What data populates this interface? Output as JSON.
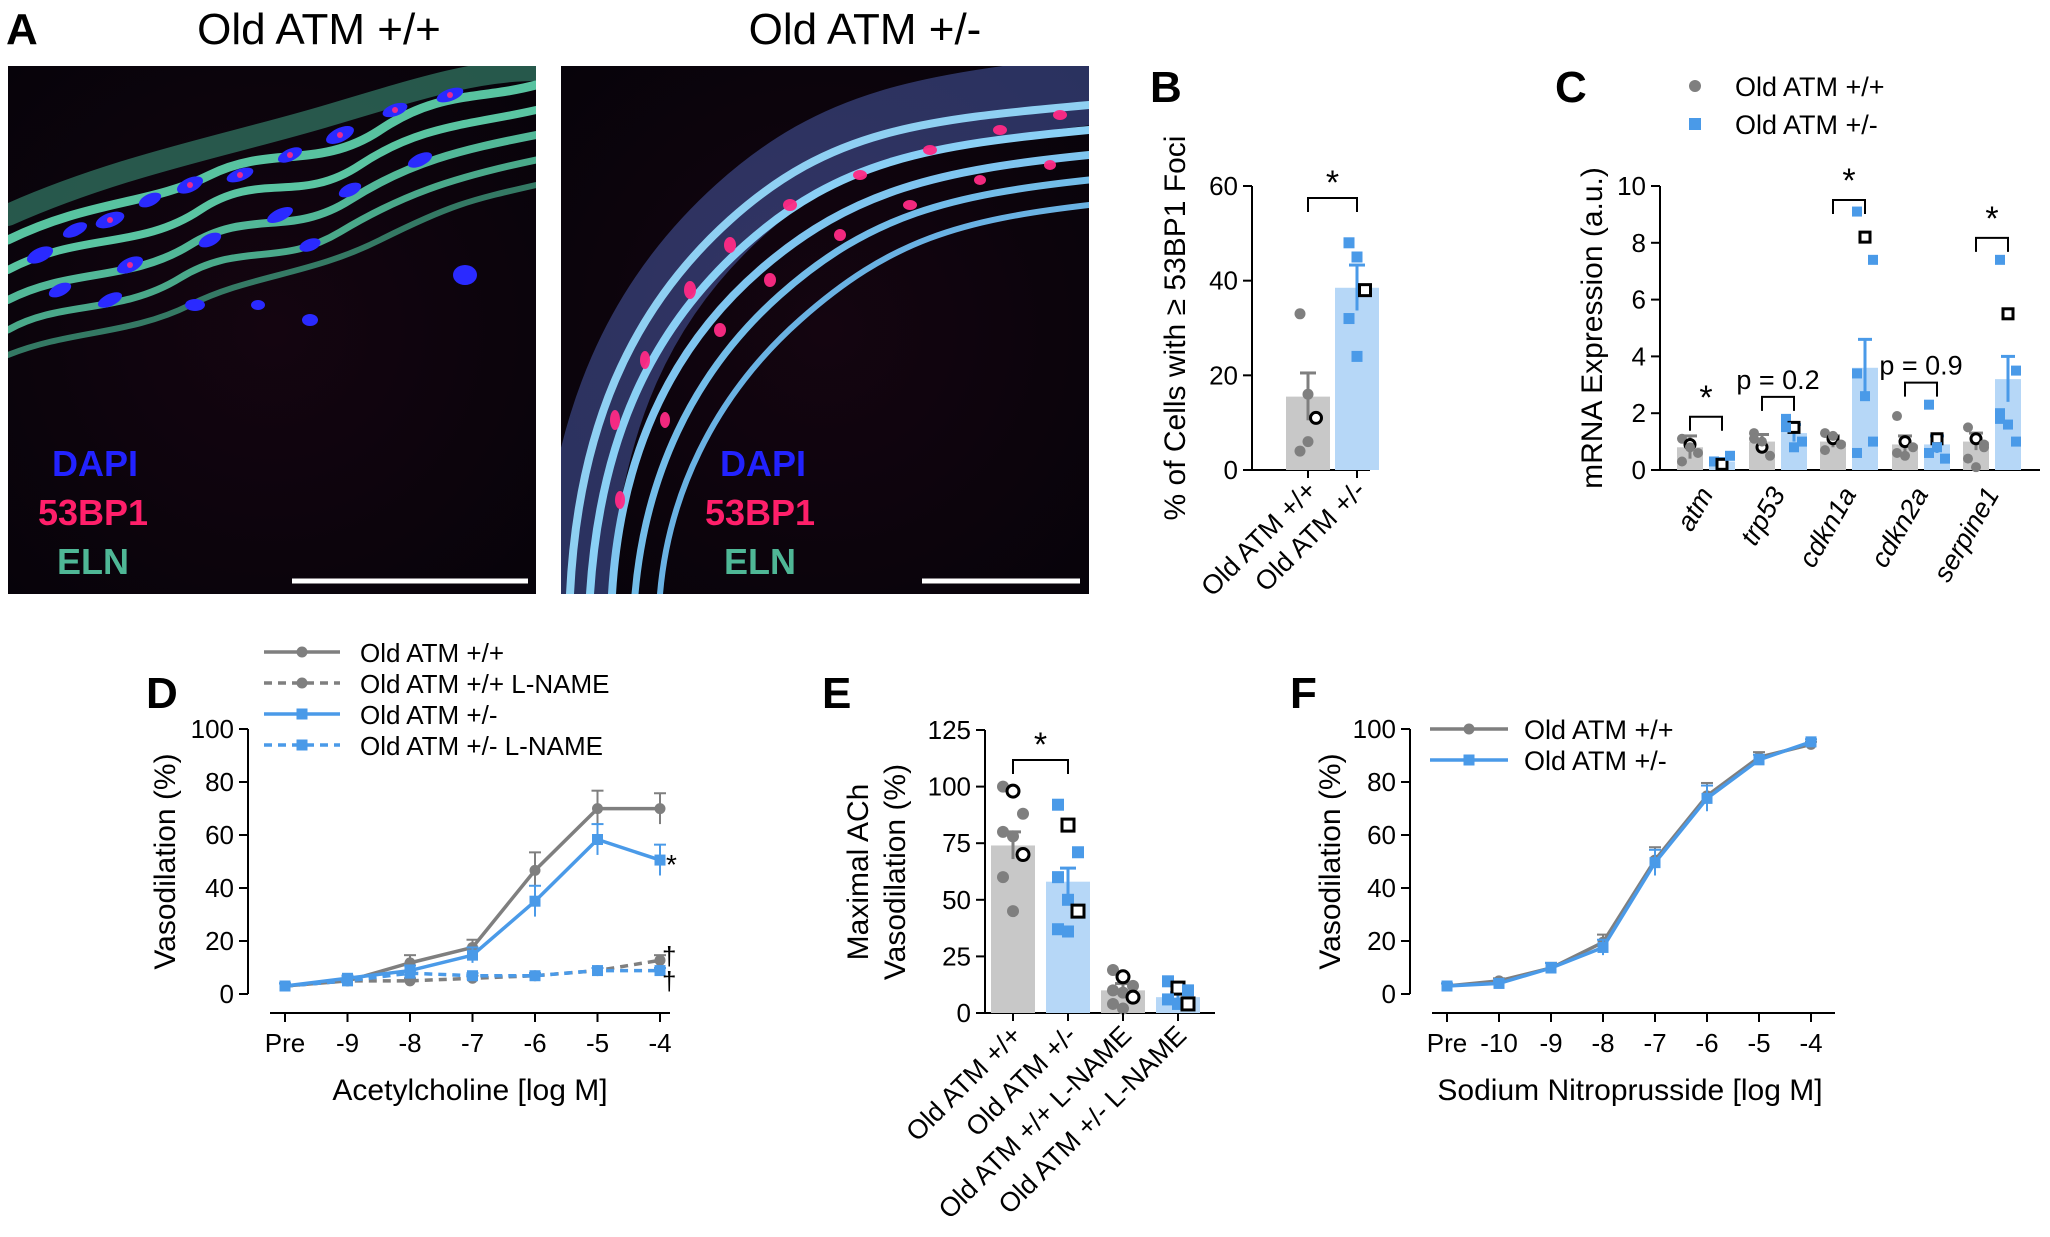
{
  "colors": {
    "wt": "#7f7f7f",
    "het": "#4a9ae8",
    "wt_fill": "#c8c8c8",
    "het_fill": "#b6d7f7",
    "dapi": "#2020ff",
    "bp1": "#ff1f6a",
    "eln": "#4fb796"
  },
  "panels": {
    "A": {
      "letter": "A",
      "titles": [
        "Old ATM +/+",
        "Old ATM +/-"
      ],
      "stains": [
        "DAPI",
        "53BP1",
        "ELN"
      ]
    },
    "B": {
      "letter": "B"
    },
    "C": {
      "letter": "C"
    },
    "D": {
      "letter": "D"
    },
    "E": {
      "letter": "E"
    },
    "F": {
      "letter": "F"
    }
  },
  "chart_data": [
    {
      "id": "B",
      "type": "bar",
      "ylabel": "% of Cells with ≥ 53BP1 Foci",
      "ylim": [
        0,
        60
      ],
      "yticks": [
        "0",
        "20",
        "40",
        "60"
      ],
      "categories": [
        "Old ATM +/+",
        "Old ATM +/-"
      ],
      "values": [
        15.5,
        38.5
      ],
      "sem": [
        5,
        4.8
      ],
      "points": [
        [
          33,
          16,
          11,
          4,
          6
        ],
        [
          48,
          45,
          38,
          32,
          24
        ]
      ],
      "significance": "*"
    },
    {
      "id": "C",
      "type": "bar",
      "ylabel": "mRNA Expression (a.u.)",
      "ylim": [
        0,
        10
      ],
      "yticks": [
        "0",
        "2",
        "4",
        "6",
        "8",
        "10"
      ],
      "categories": [
        "atm",
        "trp53",
        "cdkn1a",
        "cdkn2a",
        "serpine1"
      ],
      "series": [
        {
          "name": "Old ATM +/+",
          "values": [
            0.8,
            1.0,
            1.0,
            0.9,
            1.0
          ],
          "sem": [
            0.4,
            0.25,
            0.2,
            0.3,
            0.3
          ],
          "points": [
            [
              1.1,
              0.9,
              0.6,
              0.3,
              0.8
            ],
            [
              1.3,
              0.8,
              0.5,
              1.1,
              1.0
            ],
            [
              1.3,
              1.1,
              0.9,
              0.7,
              1.2
            ],
            [
              1.9,
              1.0,
              0.8,
              0.6,
              0.5
            ],
            [
              1.5,
              1.1,
              0.9,
              0.4,
              0.1,
              0.8
            ]
          ]
        },
        {
          "name": "Old ATM +/-",
          "values": [
            0.3,
            1.3,
            3.6,
            0.9,
            3.2
          ],
          "sem": [
            0.1,
            0.3,
            1.0,
            0.3,
            0.8
          ],
          "points": [
            [
              0.3,
              0.2,
              0.5
            ],
            [
              1.8,
              1.5,
              1.0,
              1.5,
              0.8
            ],
            [
              9.1,
              8.2,
              7.4,
              3.4,
              2.6,
              1.0,
              0.6
            ],
            [
              2.3,
              1.1,
              0.4,
              0.6,
              0.8
            ],
            [
              7.4,
              5.5,
              3.5,
              2.0,
              1.6,
              1.0,
              1.8
            ]
          ]
        }
      ],
      "annotations": [
        "*",
        "p = 0.2",
        "*",
        "p = 0.9",
        "*"
      ]
    },
    {
      "id": "D",
      "type": "line",
      "xlabel": "Acetylcholine [log M]",
      "ylabel": "Vasodilation (%)",
      "ylim": [
        0,
        100
      ],
      "yticks": [
        "0",
        "20",
        "40",
        "60",
        "80",
        "100"
      ],
      "x": [
        "Pre",
        "-9",
        "-8",
        "-7",
        "-6",
        "-5",
        "-4"
      ],
      "series": [
        {
          "name": "Old ATM +/+",
          "values": [
            0,
            2,
            9,
            15,
            45,
            69,
            69
          ],
          "err": [
            1,
            2,
            3,
            3,
            7,
            7,
            6
          ]
        },
        {
          "name": "Old ATM +/+ L-NAME",
          "values": [
            0,
            2,
            2,
            3,
            4,
            6,
            10
          ],
          "err": [
            1,
            1,
            1,
            1,
            1,
            1,
            2
          ]
        },
        {
          "name": "Old ATM +/-",
          "values": [
            0,
            3,
            6,
            12,
            33,
            57,
            49
          ],
          "err": [
            1,
            1,
            2,
            3,
            6,
            6,
            6
          ]
        },
        {
          "name": "Old ATM +/-  L-NAME",
          "values": [
            0,
            2,
            5,
            4,
            4,
            6,
            6
          ],
          "err": [
            1,
            1,
            1,
            1,
            1,
            1,
            1
          ]
        }
      ],
      "annotations": [
        "*",
        "†",
        "†"
      ]
    },
    {
      "id": "E",
      "type": "bar",
      "ylabel": "Maximal ACh Vasodilation (%)",
      "ylim": [
        0,
        125
      ],
      "yticks": [
        "0",
        "25",
        "50",
        "75",
        "100",
        "125"
      ],
      "categories": [
        "Old ATM +/+",
        "Old ATM +/-",
        "Old ATM +/+ L-NAME",
        "Old ATM +/- L-NAME"
      ],
      "values": [
        74,
        58,
        10,
        7
      ],
      "sem": [
        6,
        6,
        3,
        2
      ],
      "points": [
        [
          100,
          98,
          88,
          80,
          78,
          70,
          60,
          45
        ],
        [
          92,
          83,
          71,
          60,
          50,
          45,
          37,
          36
        ],
        [
          19,
          16,
          12,
          10,
          9,
          7,
          4,
          2
        ],
        [
          14,
          11,
          10,
          6,
          4,
          4
        ]
      ],
      "significance": "*"
    },
    {
      "id": "F",
      "type": "line",
      "xlabel": "Sodium Nitroprusside [log M]",
      "ylabel": "Vasodilation (%)",
      "ylim": [
        0,
        100
      ],
      "yticks": [
        "0",
        "20",
        "40",
        "60",
        "80",
        "100"
      ],
      "x": [
        "Pre",
        "-10",
        "-9",
        "-8",
        "-7",
        "-6",
        "-5",
        "-4"
      ],
      "series": [
        {
          "name": "Old ATM +/+",
          "values": [
            0,
            2,
            7,
            17,
            49,
            74,
            89,
            94
          ],
          "err": [
            1,
            1,
            2,
            3,
            5,
            5,
            2,
            1
          ]
        },
        {
          "name": "Old ATM +/-",
          "values": [
            0,
            1,
            7,
            15,
            48,
            73,
            88,
            95
          ],
          "err": [
            1,
            1,
            2,
            3,
            5,
            5,
            2,
            1
          ]
        }
      ]
    }
  ]
}
